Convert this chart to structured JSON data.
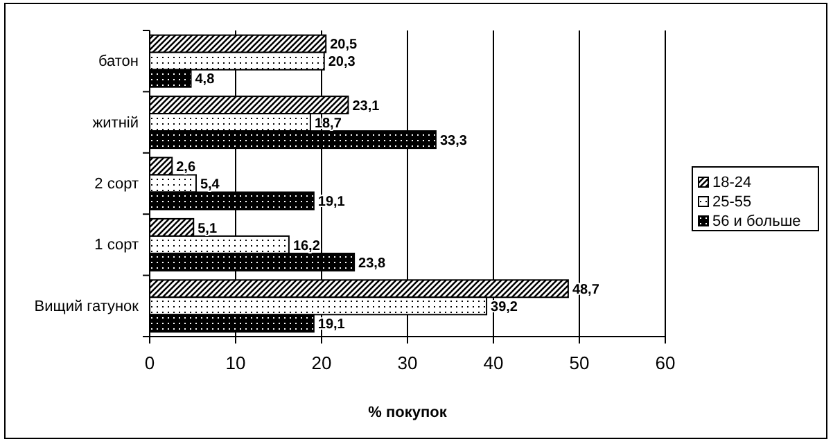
{
  "chart_data": {
    "type": "bar",
    "orientation": "horizontal",
    "xlabel": "% покупок",
    "categories": [
      "батон",
      "житній",
      "2 сорт",
      "1 сорт",
      "Вищий гатунок"
    ],
    "series": [
      {
        "name": "18-24",
        "color": "#000000",
        "values": [
          20.5,
          23.1,
          2.6,
          5.1,
          48.7
        ],
        "value_labels": [
          "20,5",
          "23,1",
          "2,6",
          "5,1",
          "48,7"
        ]
      },
      {
        "name": "25-55",
        "color": "#000000",
        "values": [
          20.3,
          18.7,
          5.4,
          16.2,
          39.2
        ],
        "value_labels": [
          "20,3",
          "18,7",
          "5,4",
          "16,2",
          "39,2"
        ]
      },
      {
        "name": "56 и больше",
        "color": "#000000",
        "values": [
          4.8,
          33.3,
          19.1,
          23.8,
          19.1
        ],
        "value_labels": [
          "4,8",
          "33,3",
          "19,1",
          "23,8",
          "19,1"
        ]
      }
    ],
    "xlim": [
      0,
      60
    ],
    "xticks": [
      0,
      10,
      20,
      30,
      40,
      50,
      60
    ],
    "grid": "x",
    "legend": "right"
  }
}
